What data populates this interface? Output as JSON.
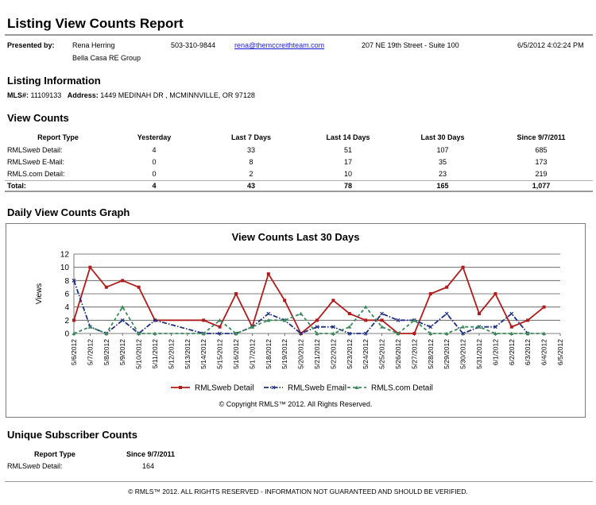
{
  "header": {
    "title": "Listing View Counts Report"
  },
  "presenter": {
    "label": "Presented by:",
    "name": "Rena Herring",
    "company": "Bella Casa RE Group",
    "phone": "503-310-9844",
    "email": "rena@themccreithteam.com",
    "address": "207 NE 19th Street - Suite 100",
    "timestamp": "6/5/2012 4:02:24 PM"
  },
  "listing": {
    "heading": "Listing Information",
    "mls_label": "MLS#:",
    "mls_value": "11109133",
    "address_label": "Address:",
    "address_value": "1449 MEDINAH DR , MCMINNVILLE, OR 97128"
  },
  "view_counts": {
    "heading": "View Counts",
    "columns": [
      "Report Type",
      "Yesterday",
      "Last 7 Days",
      "Last 14 Days",
      "Last 30 Days",
      "Since 9/7/2011"
    ],
    "rows": [
      {
        "type_a": "RMLS",
        "type_b": "web",
        "type_c": " Detail:",
        "values": [
          "4",
          "33",
          "51",
          "107",
          "685"
        ]
      },
      {
        "type_a": "RMLS",
        "type_b": "web",
        "type_c": " E-Mail:",
        "values": [
          "0",
          "8",
          "17",
          "35",
          "173"
        ]
      },
      {
        "type_a": "RMLS.com Detail:",
        "type_b": "",
        "type_c": "",
        "values": [
          "0",
          "2",
          "10",
          "23",
          "219"
        ]
      }
    ],
    "total": {
      "label": "Total:",
      "values": [
        "4",
        "43",
        "78",
        "165",
        "1,077"
      ]
    }
  },
  "graph": {
    "heading": "Daily View Counts Graph",
    "copyright": "© Copyright RMLS™ 2012.  All Rights Reserved."
  },
  "chart_data": {
    "type": "line",
    "title": "View Counts Last 30 Days",
    "xlabel": "",
    "ylabel": "Views",
    "ylim": [
      0,
      12
    ],
    "yticks": [
      "0",
      "2",
      "4",
      "6",
      "8",
      "10",
      "12"
    ],
    "grid": true,
    "legend": "bottom",
    "categories": [
      "5/6/2012",
      "5/7/2012",
      "5/8/2012",
      "5/9/2012",
      "5/10/2012",
      "5/11/2012",
      "5/12/2012",
      "5/13/2012",
      "5/14/2012",
      "5/15/2012",
      "5/16/2012",
      "5/17/2012",
      "5/18/2012",
      "5/19/2012",
      "5/20/2012",
      "5/21/2012",
      "5/22/2012",
      "5/23/2012",
      "5/24/2012",
      "5/25/2012",
      "5/26/2012",
      "5/27/2012",
      "5/28/2012",
      "5/29/2012",
      "5/30/2012",
      "5/31/2012",
      "6/1/2012",
      "6/2/2012",
      "6/3/2012",
      "6/4/2012",
      "6/5/2012"
    ],
    "series": [
      {
        "name": "RMLSweb Detail",
        "color": "#b01c1c",
        "style": "solid",
        "marker": "square",
        "values": [
          2,
          10,
          7,
          8,
          7,
          2,
          null,
          null,
          2,
          1,
          6,
          1,
          9,
          5,
          0,
          2,
          5,
          3,
          2,
          2,
          0,
          0,
          6,
          7,
          10,
          3,
          6,
          1,
          2,
          4,
          null
        ]
      },
      {
        "name": "RMLSweb Email",
        "color": "#1f2f80",
        "style": "dashdot",
        "marker": "x",
        "values": [
          8,
          1,
          0,
          2,
          0,
          2,
          null,
          null,
          0,
          0,
          0,
          1,
          3,
          2,
          0,
          1,
          1,
          0,
          0,
          3,
          2,
          2,
          1,
          3,
          0,
          1,
          1,
          3,
          0,
          null,
          null
        ]
      },
      {
        "name": "RMLS.com Detail",
        "color": "#3c8a5c",
        "style": "dashed",
        "marker": "triangle",
        "values": [
          0,
          1,
          0,
          4,
          0,
          0,
          null,
          null,
          0,
          2,
          0,
          1,
          2,
          2,
          3,
          0,
          0,
          1,
          4,
          1,
          0,
          2,
          0,
          0,
          1,
          1,
          0,
          0,
          0,
          0,
          null
        ]
      }
    ]
  },
  "unique": {
    "heading": "Unique Subscriber Counts",
    "col_type": "Report Type",
    "col_since": "Since 9/7/2011",
    "row_a": "RMLS",
    "row_b": "web",
    "row_c": " Detail:",
    "row_value": "164"
  },
  "footer": {
    "text": "© RMLS™ 2012. ALL RIGHTS RESERVED - INFORMATION NOT GUARANTEED AND SHOULD BE VERIFIED."
  }
}
